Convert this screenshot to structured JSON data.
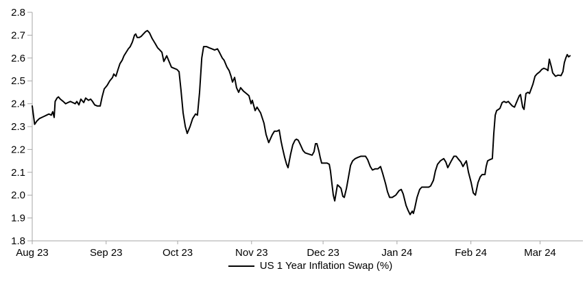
{
  "chart_data": {
    "type": "line",
    "title": "",
    "xlabel": "",
    "ylabel": "",
    "grid": false,
    "background_color": "#ffffff",
    "axis_color": "#a6a6a6",
    "text_color": "#000000",
    "y_axis": {
      "min": 1.8,
      "max": 2.8,
      "step": 0.1,
      "tick_labels": [
        "2.8",
        "2.7",
        "2.6",
        "2.5",
        "2.4",
        "2.3",
        "2.2",
        "2.1",
        "2.0",
        "1.9",
        "1.8"
      ]
    },
    "x_axis": {
      "kind": "time-days-from-Aug-1-2023",
      "domain_days": [
        0,
        231
      ],
      "ticks": [
        {
          "day": 0,
          "label": "Aug 23"
        },
        {
          "day": 31,
          "label": "Sep 23"
        },
        {
          "day": 61,
          "label": "Oct 23"
        },
        {
          "day": 92,
          "label": "Nov 23"
        },
        {
          "day": 122,
          "label": "Dec 23"
        },
        {
          "day": 153,
          "label": "Jan 24"
        },
        {
          "day": 184,
          "label": "Feb 24"
        },
        {
          "day": 213,
          "label": "Mar 24"
        }
      ]
    },
    "legend": {
      "position": "bottom-center",
      "entries": [
        {
          "label": "US 1 Year Inflation Swap (%)",
          "color": "#000000"
        }
      ]
    },
    "series": [
      {
        "name": "US 1 Year Inflation Swap (%)",
        "color": "#000000",
        "line_width": 2,
        "points": [
          [
            0,
            2.39
          ],
          [
            1,
            2.31
          ],
          [
            2,
            2.325
          ],
          [
            3,
            2.335
          ],
          [
            4,
            2.34
          ],
          [
            5,
            2.345
          ],
          [
            6,
            2.35
          ],
          [
            7,
            2.355
          ],
          [
            8,
            2.35
          ],
          [
            8.6,
            2.365
          ],
          [
            9.2,
            2.34
          ],
          [
            9.6,
            2.41
          ],
          [
            10.4,
            2.425
          ],
          [
            11,
            2.43
          ],
          [
            11.8,
            2.42
          ],
          [
            13,
            2.41
          ],
          [
            14,
            2.4
          ],
          [
            15,
            2.405
          ],
          [
            16,
            2.41
          ],
          [
            17,
            2.405
          ],
          [
            18,
            2.4
          ],
          [
            18.7,
            2.41
          ],
          [
            19.6,
            2.395
          ],
          [
            20.4,
            2.42
          ],
          [
            21.6,
            2.405
          ],
          [
            22.4,
            2.425
          ],
          [
            23.6,
            2.415
          ],
          [
            24.5,
            2.42
          ],
          [
            25.3,
            2.41
          ],
          [
            26.2,
            2.395
          ],
          [
            27.3,
            2.39
          ],
          [
            28.5,
            2.39
          ],
          [
            29.3,
            2.43
          ],
          [
            30.2,
            2.465
          ],
          [
            31.4,
            2.48
          ],
          [
            32.5,
            2.5
          ],
          [
            33.7,
            2.515
          ],
          [
            34.2,
            2.53
          ],
          [
            35.1,
            2.52
          ],
          [
            36,
            2.55
          ],
          [
            36.8,
            2.575
          ],
          [
            37.7,
            2.59
          ],
          [
            38.5,
            2.61
          ],
          [
            39.4,
            2.625
          ],
          [
            40.3,
            2.64
          ],
          [
            41.1,
            2.65
          ],
          [
            42,
            2.67
          ],
          [
            42.9,
            2.7
          ],
          [
            43.4,
            2.705
          ],
          [
            44,
            2.69
          ],
          [
            44.9,
            2.69
          ],
          [
            45.7,
            2.695
          ],
          [
            46.6,
            2.705
          ],
          [
            47.5,
            2.715
          ],
          [
            48.3,
            2.72
          ],
          [
            49.2,
            2.71
          ],
          [
            50.3,
            2.685
          ],
          [
            51.5,
            2.665
          ],
          [
            52.6,
            2.645
          ],
          [
            53.5,
            2.635
          ],
          [
            54.4,
            2.625
          ],
          [
            55.2,
            2.585
          ],
          [
            56.4,
            2.61
          ],
          [
            57.2,
            2.59
          ],
          [
            58.4,
            2.56
          ],
          [
            59.5,
            2.555
          ],
          [
            60.7,
            2.55
          ],
          [
            61.6,
            2.54
          ],
          [
            62.4,
            2.46
          ],
          [
            63.3,
            2.36
          ],
          [
            64.2,
            2.3
          ],
          [
            65,
            2.27
          ],
          [
            66.2,
            2.3
          ],
          [
            67.3,
            2.335
          ],
          [
            68.5,
            2.355
          ],
          [
            69.3,
            2.35
          ],
          [
            70.2,
            2.45
          ],
          [
            71.1,
            2.6
          ],
          [
            71.9,
            2.65
          ],
          [
            73.1,
            2.65
          ],
          [
            74.2,
            2.645
          ],
          [
            75.4,
            2.64
          ],
          [
            76.5,
            2.635
          ],
          [
            77.7,
            2.64
          ],
          [
            78.5,
            2.625
          ],
          [
            79.7,
            2.6
          ],
          [
            80.5,
            2.59
          ],
          [
            81.7,
            2.56
          ],
          [
            82.6,
            2.545
          ],
          [
            83.4,
            2.52
          ],
          [
            84,
            2.495
          ],
          [
            84.9,
            2.515
          ],
          [
            85.7,
            2.47
          ],
          [
            86.6,
            2.45
          ],
          [
            87.4,
            2.47
          ],
          [
            88.6,
            2.455
          ],
          [
            89.8,
            2.445
          ],
          [
            90.9,
            2.435
          ],
          [
            91.8,
            2.4
          ],
          [
            92.3,
            2.415
          ],
          [
            93.5,
            2.37
          ],
          [
            94.3,
            2.385
          ],
          [
            95.8,
            2.36
          ],
          [
            97.2,
            2.315
          ],
          [
            98.1,
            2.265
          ],
          [
            99.2,
            2.23
          ],
          [
            100.7,
            2.265
          ],
          [
            101.6,
            2.28
          ],
          [
            102.7,
            2.28
          ],
          [
            103.6,
            2.285
          ],
          [
            104.4,
            2.235
          ],
          [
            105,
            2.205
          ],
          [
            105.9,
            2.165
          ],
          [
            106.7,
            2.135
          ],
          [
            107.3,
            2.12
          ],
          [
            108.4,
            2.18
          ],
          [
            109.3,
            2.22
          ],
          [
            110.2,
            2.24
          ],
          [
            110.8,
            2.245
          ],
          [
            111.6,
            2.24
          ],
          [
            112.5,
            2.22
          ],
          [
            113.6,
            2.195
          ],
          [
            114.5,
            2.185
          ],
          [
            115.9,
            2.18
          ],
          [
            117.4,
            2.175
          ],
          [
            118.2,
            2.19
          ],
          [
            118.8,
            2.225
          ],
          [
            119.4,
            2.225
          ],
          [
            120.2,
            2.195
          ],
          [
            120.8,
            2.165
          ],
          [
            121.4,
            2.14
          ],
          [
            123.7,
            2.14
          ],
          [
            124.6,
            2.135
          ],
          [
            125.1,
            2.105
          ],
          [
            125.7,
            2.05
          ],
          [
            126.3,
            2.0
          ],
          [
            126.9,
            1.975
          ],
          [
            128,
            2.045
          ],
          [
            128.6,
            2.04
          ],
          [
            129.5,
            2.03
          ],
          [
            130.3,
            1.995
          ],
          [
            130.9,
            1.99
          ],
          [
            131.8,
            2.03
          ],
          [
            132.6,
            2.075
          ],
          [
            133.5,
            2.13
          ],
          [
            134.4,
            2.15
          ],
          [
            135.5,
            2.16
          ],
          [
            136.6,
            2.165
          ],
          [
            137.8,
            2.17
          ],
          [
            138.9,
            2.17
          ],
          [
            139.8,
            2.17
          ],
          [
            140.7,
            2.155
          ],
          [
            141.8,
            2.125
          ],
          [
            142.7,
            2.11
          ],
          [
            143.8,
            2.115
          ],
          [
            145,
            2.115
          ],
          [
            146.1,
            2.125
          ],
          [
            147,
            2.095
          ],
          [
            148.2,
            2.05
          ],
          [
            149,
            2.015
          ],
          [
            149.9,
            1.99
          ],
          [
            151,
            1.99
          ],
          [
            152.5,
            2.0
          ],
          [
            153.9,
            2.02
          ],
          [
            154.8,
            2.025
          ],
          [
            155.6,
            2.005
          ],
          [
            156.8,
            1.955
          ],
          [
            157.6,
            1.935
          ],
          [
            158.5,
            1.915
          ],
          [
            159.4,
            1.93
          ],
          [
            159.9,
            1.92
          ],
          [
            160.5,
            1.945
          ],
          [
            161.4,
            1.99
          ],
          [
            162.5,
            2.025
          ],
          [
            163.4,
            2.035
          ],
          [
            164.8,
            2.035
          ],
          [
            166.3,
            2.035
          ],
          [
            167.1,
            2.04
          ],
          [
            168.3,
            2.065
          ],
          [
            169.1,
            2.105
          ],
          [
            170,
            2.135
          ],
          [
            171.2,
            2.15
          ],
          [
            172.6,
            2.16
          ],
          [
            173.5,
            2.145
          ],
          [
            174.3,
            2.12
          ],
          [
            175.8,
            2.15
          ],
          [
            176.9,
            2.17
          ],
          [
            177.8,
            2.17
          ],
          [
            178.6,
            2.16
          ],
          [
            179.8,
            2.145
          ],
          [
            180.7,
            2.125
          ],
          [
            181.2,
            2.135
          ],
          [
            182.1,
            2.15
          ],
          [
            183,
            2.1
          ],
          [
            184.1,
            2.055
          ],
          [
            185,
            2.01
          ],
          [
            185.9,
            2.0
          ],
          [
            187,
            2.055
          ],
          [
            187.9,
            2.08
          ],
          [
            188.7,
            2.09
          ],
          [
            189.9,
            2.09
          ],
          [
            190.4,
            2.125
          ],
          [
            191,
            2.15
          ],
          [
            191.9,
            2.155
          ],
          [
            193,
            2.16
          ],
          [
            193.6,
            2.27
          ],
          [
            194.2,
            2.35
          ],
          [
            194.8,
            2.37
          ],
          [
            195.6,
            2.375
          ],
          [
            196.2,
            2.38
          ],
          [
            197.1,
            2.405
          ],
          [
            197.9,
            2.41
          ],
          [
            198.8,
            2.405
          ],
          [
            199.7,
            2.41
          ],
          [
            200.5,
            2.4
          ],
          [
            201.4,
            2.39
          ],
          [
            202.3,
            2.385
          ],
          [
            203.1,
            2.405
          ],
          [
            204.3,
            2.435
          ],
          [
            204.8,
            2.44
          ],
          [
            205.7,
            2.385
          ],
          [
            206.3,
            2.375
          ],
          [
            207.1,
            2.445
          ],
          [
            208,
            2.45
          ],
          [
            208.6,
            2.445
          ],
          [
            210,
            2.485
          ],
          [
            210.9,
            2.52
          ],
          [
            211.7,
            2.53
          ],
          [
            212.9,
            2.54
          ],
          [
            213.7,
            2.55
          ],
          [
            214.6,
            2.555
          ],
          [
            215.8,
            2.55
          ],
          [
            216.3,
            2.545
          ],
          [
            216.9,
            2.595
          ],
          [
            217.8,
            2.56
          ],
          [
            218.3,
            2.535
          ],
          [
            219.5,
            2.52
          ],
          [
            220.6,
            2.525
          ],
          [
            221.8,
            2.523
          ],
          [
            222.6,
            2.54
          ],
          [
            223.2,
            2.58
          ],
          [
            223.8,
            2.6
          ],
          [
            224.4,
            2.615
          ],
          [
            225,
            2.605
          ],
          [
            225.6,
            2.61
          ]
        ]
      }
    ]
  }
}
